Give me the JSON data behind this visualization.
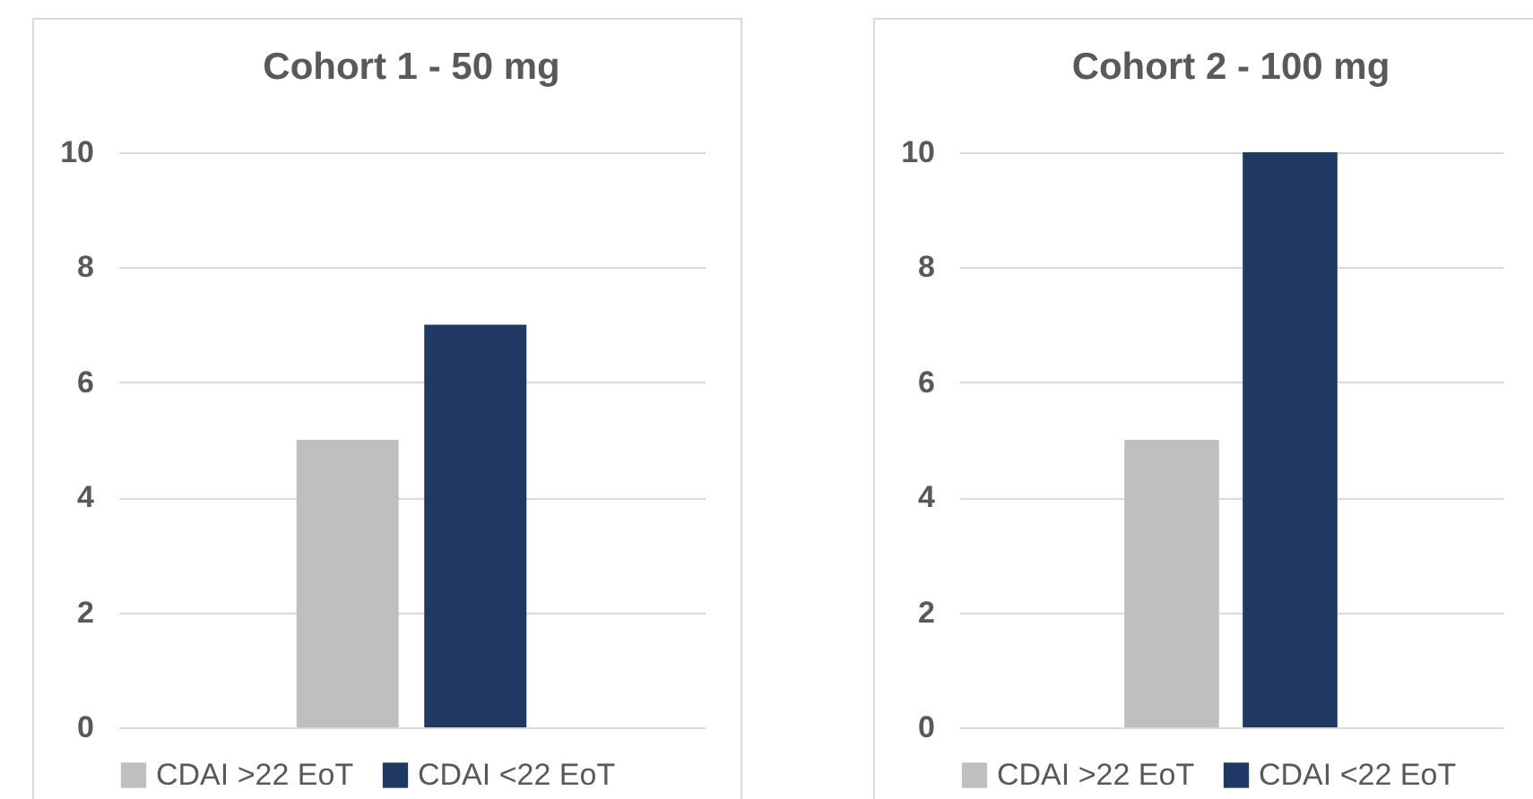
{
  "chart_data": [
    {
      "type": "bar",
      "title": "Cohort 1 - 50 mg",
      "categories": [
        null
      ],
      "series": [
        {
          "name": "CDAI >22 EoT",
          "color": "#bfbfbf",
          "values": [
            5
          ]
        },
        {
          "name": "CDAI <22 EoT",
          "color": "#203864",
          "values": [
            7
          ]
        }
      ],
      "ylim": [
        0,
        10
      ],
      "yticks": [
        0,
        2,
        4,
        6,
        8,
        10
      ],
      "grid": "y",
      "legend": "bottom"
    },
    {
      "type": "bar",
      "title": "Cohort 2 - 100 mg",
      "categories": [
        null
      ],
      "series": [
        {
          "name": "CDAI >22 EoT",
          "color": "#bfbfbf",
          "values": [
            5
          ]
        },
        {
          "name": "CDAI <22 EoT",
          "color": "#203864",
          "values": [
            10
          ]
        }
      ],
      "ylim": [
        0,
        10
      ],
      "yticks": [
        0,
        2,
        4,
        6,
        8,
        10
      ],
      "grid": "y",
      "legend": "bottom"
    }
  ]
}
